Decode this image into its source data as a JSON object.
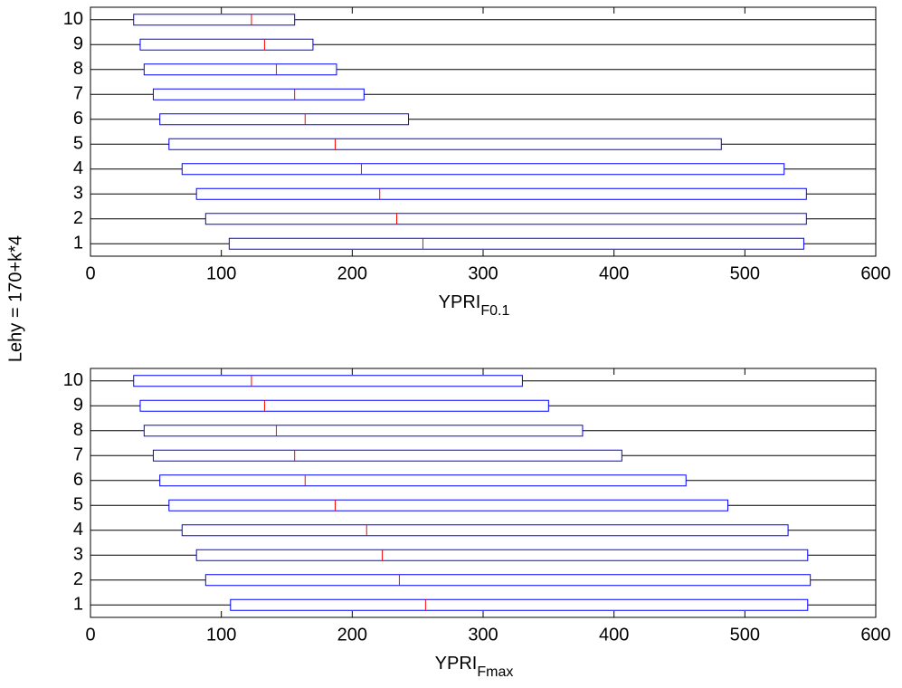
{
  "chart_data": [
    {
      "type": "boxplot",
      "xlabel": "YPRI",
      "xlabel_subscript": "F0.1",
      "ylabel": "Lehy = 170+k*4",
      "categories": [
        "1",
        "2",
        "3",
        "4",
        "5",
        "6",
        "7",
        "8",
        "9",
        "10"
      ],
      "q1": [
        106,
        88,
        81,
        70,
        60,
        53,
        48,
        41,
        38,
        33
      ],
      "median": [
        254,
        234,
        221,
        207,
        187,
        164,
        156,
        142,
        133,
        123
      ],
      "q3": [
        545,
        547,
        547,
        530,
        482,
        243,
        209,
        188,
        170,
        156
      ],
      "box_color": "#0000ff",
      "median_color": "#ff0000",
      "xlim": [
        0,
        600
      ],
      "xticks": [
        0,
        100,
        200,
        300,
        400,
        500,
        600
      ]
    },
    {
      "type": "boxplot",
      "xlabel": "YPRI",
      "xlabel_subscript": "Fmax",
      "categories": [
        "1",
        "2",
        "3",
        "4",
        "5",
        "6",
        "7",
        "8",
        "9",
        "10"
      ],
      "q1": [
        107,
        88,
        81,
        70,
        60,
        53,
        48,
        41,
        38,
        33
      ],
      "median": [
        256,
        236,
        223,
        211,
        187,
        164,
        156,
        142,
        133,
        123
      ],
      "q3": [
        548,
        550,
        548,
        533,
        487,
        455,
        406,
        376,
        350,
        330
      ],
      "box_color": "#0000ff",
      "median_color": "#ff0000",
      "xlim": [
        0,
        600
      ],
      "xticks": [
        0,
        100,
        200,
        300,
        400,
        500,
        600
      ]
    }
  ]
}
